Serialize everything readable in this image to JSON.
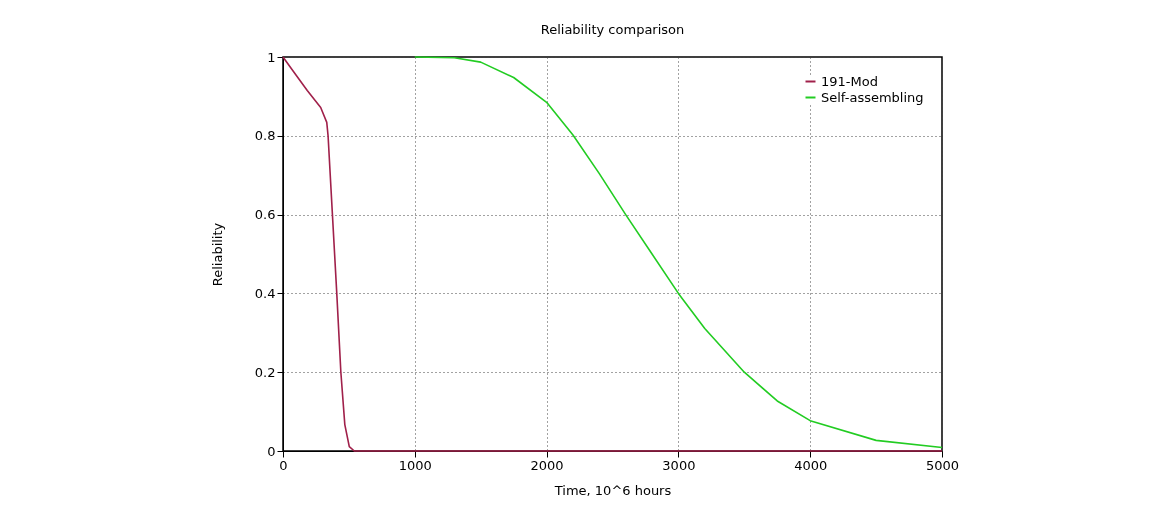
{
  "chart_data": {
    "type": "line",
    "title": "Reliability comparison",
    "xlabel": "Time, 10^6 hours",
    "ylabel": "Reliability",
    "xlim": [
      0,
      5000
    ],
    "xticks": [
      0,
      1000,
      2000,
      3000,
      4000,
      5000
    ],
    "ylim": [
      0,
      1
    ],
    "yticks": [
      0,
      0.2,
      0.4,
      0.6,
      0.8,
      1
    ],
    "grid": true,
    "legend": "top right",
    "line_style": "solid",
    "marker": "none",
    "series": [
      {
        "name": "191-Mod",
        "color": "#a0204a",
        "x": [
          0,
          82,
          184,
          286,
          332,
          342,
          375,
          408,
          439,
          469,
          503,
          541,
          5000
        ],
        "values": [
          1,
          0.962,
          0.915,
          0.872,
          0.834,
          0.8,
          0.6,
          0.4,
          0.2,
          0.067,
          0.011,
          0,
          0
        ]
      },
      {
        "name": "Self-assembling",
        "color": "#22cc22",
        "x": [
          1000,
          1300,
          1500,
          1750,
          2000,
          2200,
          2400,
          2600,
          2800,
          3000,
          3200,
          3500,
          3750,
          4000,
          4500,
          5000
        ],
        "values": [
          1,
          0.998,
          0.987,
          0.948,
          0.885,
          0.802,
          0.704,
          0.6,
          0.5,
          0.4,
          0.311,
          0.2,
          0.127,
          0.077,
          0.027,
          0.009
        ]
      }
    ]
  }
}
